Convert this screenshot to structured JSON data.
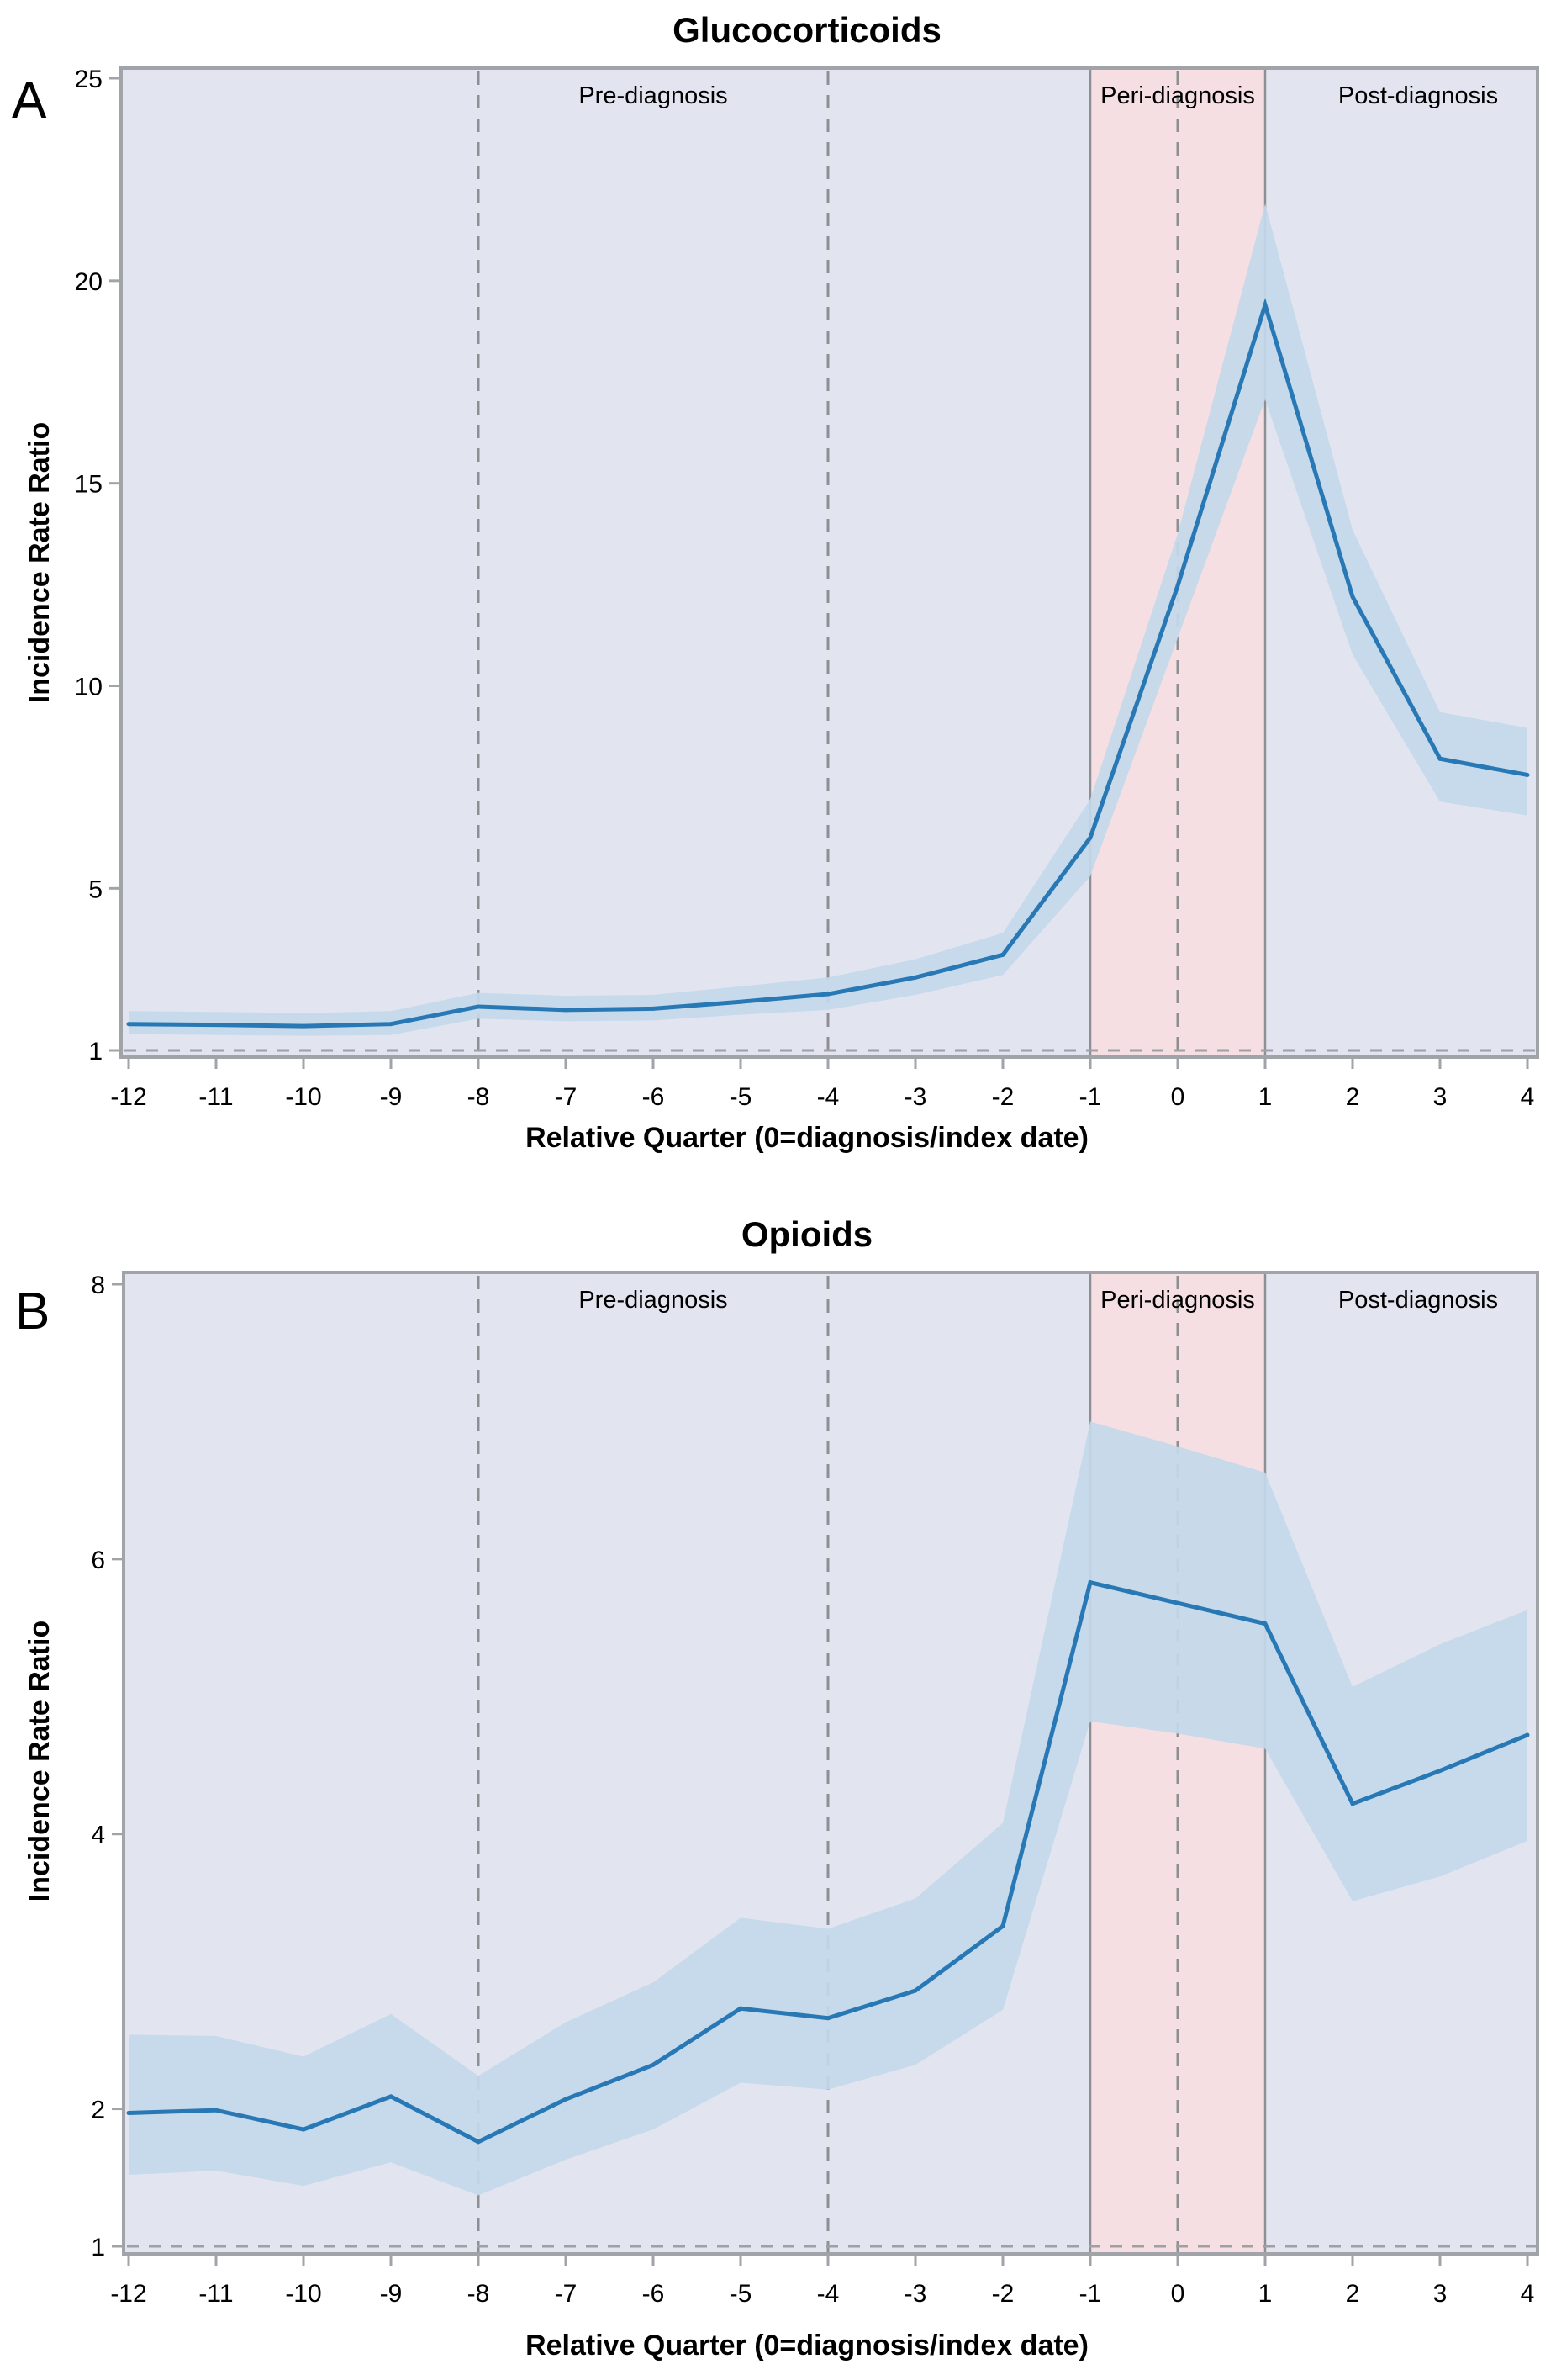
{
  "figure": {
    "panels": [
      {
        "letter": "A",
        "title": "Glucocorticoids"
      },
      {
        "letter": "B",
        "title": "Opioids"
      }
    ],
    "region_labels": {
      "pre": "Pre-diagnosis",
      "peri": "Peri-diagnosis",
      "post": "Post-diagnosis"
    }
  },
  "colors": {
    "line": "#2878b5",
    "ci_band": "#c3d9ea",
    "background": "#e2e5f0",
    "peri_region": "#f5dfe2",
    "reference_line": "#9ea0a6"
  },
  "chart_data": [
    {
      "type": "line",
      "panel": "A",
      "title": "Glucocorticoids",
      "xlabel": "Relative Quarter (0=diagnosis/index date)",
      "ylabel": "Incidence Rate Ratio",
      "x": [
        -12,
        -11,
        -10,
        -9,
        -8,
        -7,
        -6,
        -5,
        -4,
        -3,
        -2,
        -1,
        0,
        1,
        2,
        3,
        4
      ],
      "x_ticks": [
        "-12",
        "-11",
        "-10",
        "-9",
        "-8",
        "-7",
        "-6",
        "-5",
        "-4",
        "-3",
        "-2",
        "-1",
        "0",
        "1",
        "2",
        "3",
        "4"
      ],
      "y_ticks": [
        "1",
        "5",
        "10",
        "15",
        "20",
        "25"
      ],
      "y_tick_values": [
        1,
        5,
        10,
        15,
        20,
        25
      ],
      "ylim": [
        1,
        25
      ],
      "xlim": [
        -12,
        4
      ],
      "series": [
        {
          "name": "IRR",
          "values": [
            1.65,
            1.63,
            1.6,
            1.65,
            2.08,
            2.0,
            2.03,
            2.2,
            2.39,
            2.8,
            3.36,
            6.25,
            12.47,
            19.4,
            12.2,
            8.2,
            7.8
          ]
        },
        {
          "name": "CI upper",
          "values": [
            1.97,
            1.95,
            1.92,
            1.97,
            2.42,
            2.35,
            2.37,
            2.58,
            2.8,
            3.25,
            3.9,
            7.2,
            13.76,
            21.9,
            13.85,
            9.35,
            8.96
          ]
        },
        {
          "name": "CI lower",
          "values": [
            1.4,
            1.38,
            1.36,
            1.38,
            1.78,
            1.72,
            1.74,
            1.88,
            2.0,
            2.37,
            2.86,
            5.3,
            11.18,
            17.07,
            10.77,
            7.14,
            6.8
          ]
        }
      ],
      "reference_line_y": 1,
      "dashed_vlines_x": [
        -8,
        -4,
        0
      ],
      "solid_vlines_x": [
        -1,
        1
      ],
      "peri_region_x": [
        -1,
        1
      ],
      "region_label_x": {
        "pre": -6,
        "peri": 0,
        "post": 2.75
      },
      "grid": false,
      "legend": "none"
    },
    {
      "type": "line",
      "panel": "B",
      "title": "Opioids",
      "xlabel": "Relative Quarter (0=diagnosis/index date)",
      "ylabel": "Incidence Rate Ratio",
      "x": [
        -12,
        -11,
        -10,
        -9,
        -8,
        -7,
        -6,
        -5,
        -4,
        -3,
        -2,
        -1,
        0,
        1,
        2,
        3,
        4
      ],
      "x_ticks": [
        "-12",
        "-11",
        "-10",
        "-9",
        "-8",
        "-7",
        "-6",
        "-5",
        "-4",
        "-3",
        "-2",
        "-1",
        "0",
        "1",
        "2",
        "3",
        "4"
      ],
      "y_ticks": [
        "1",
        "2",
        "4",
        "6",
        "8"
      ],
      "y_tick_values": [
        1,
        2,
        4,
        6,
        8
      ],
      "ylim": [
        1,
        8
      ],
      "xlim": [
        -12,
        4
      ],
      "series": [
        {
          "name": "IRR",
          "values": [
            1.97,
            1.99,
            1.85,
            2.09,
            1.76,
            2.07,
            2.32,
            2.73,
            2.66,
            2.86,
            3.33,
            5.83,
            5.68,
            5.53,
            4.22,
            4.46,
            4.72
          ]
        },
        {
          "name": "CI upper",
          "values": [
            2.54,
            2.53,
            2.38,
            2.69,
            2.24,
            2.63,
            2.92,
            3.39,
            3.31,
            3.53,
            4.08,
            7.0,
            6.82,
            6.63,
            5.07,
            5.38,
            5.63
          ]
        },
        {
          "name": "CI lower",
          "values": [
            1.52,
            1.55,
            1.44,
            1.61,
            1.37,
            1.63,
            1.85,
            2.19,
            2.14,
            2.32,
            2.72,
            4.82,
            4.73,
            4.62,
            3.51,
            3.69,
            3.95
          ]
        }
      ],
      "reference_line_y": 1,
      "dashed_vlines_x": [
        -8,
        -4,
        0
      ],
      "solid_vlines_x": [
        -1,
        1
      ],
      "peri_region_x": [
        -1,
        1
      ],
      "region_label_x": {
        "pre": -6,
        "peri": 0,
        "post": 2.75
      },
      "grid": false,
      "legend": "none"
    }
  ]
}
